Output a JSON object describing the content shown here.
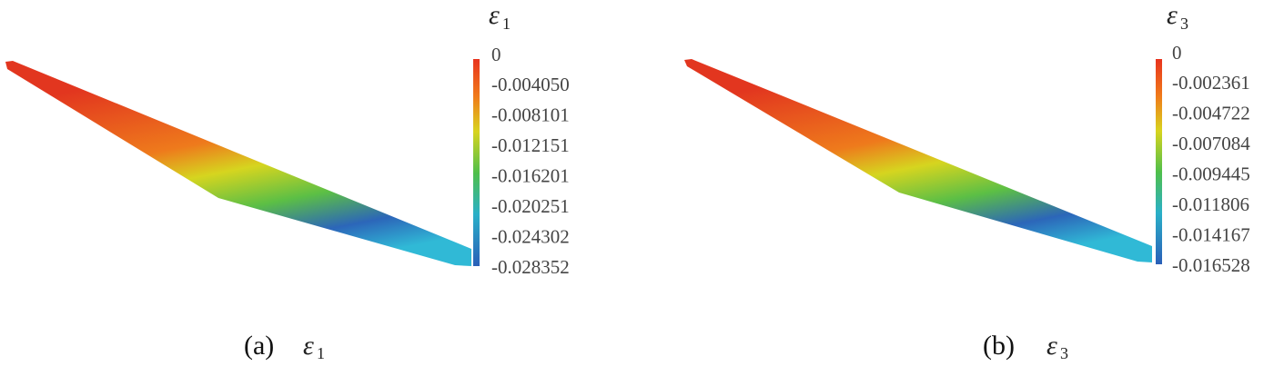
{
  "panels": [
    {
      "title": {
        "symbol": "ε",
        "subscript": "1"
      },
      "colorbar_labels": [
        "0",
        "-0.004050",
        "-0.008101",
        "-0.012151",
        "-0.016201",
        "-0.020251",
        "-0.024302",
        "-0.028352"
      ],
      "caption": {
        "label": "(a)",
        "symbol": "ε",
        "subscript": "1"
      }
    },
    {
      "title": {
        "symbol": "ε",
        "subscript": "3"
      },
      "colorbar_labels": [
        "0",
        "-0.002361",
        "-0.004722",
        "-0.007084",
        "-0.009445",
        "-0.011806",
        "-0.014167",
        "-0.016528"
      ],
      "caption": {
        "label": "(b)",
        "symbol": "ε",
        "subscript": "3"
      }
    }
  ]
}
